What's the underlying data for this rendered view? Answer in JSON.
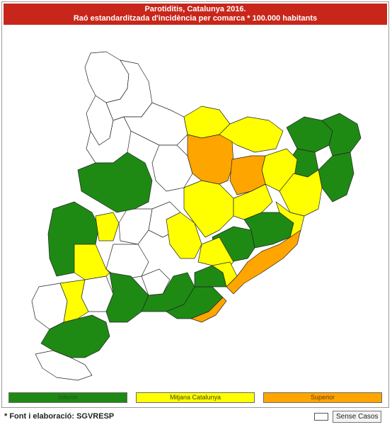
{
  "title": {
    "line1": "Parotiditis, Catalunya 2016.",
    "line2": "Raó estandarditzada d'incidència per comarca * 100.000 habitants"
  },
  "colors": {
    "title_bg": "#c8261a",
    "inferior": "#1e8a14",
    "mitjana": "#ffff00",
    "superior": "#ffa500",
    "sense_casos": "#ffffff"
  },
  "legend": {
    "inferior_label": "Inferior",
    "mitjana_label": "Mitjana Catalunya",
    "superior_label": "Superior",
    "sense_casos_label": "Sense Casos"
  },
  "footer": {
    "source": "* Font i elaboració: SGVRESP"
  }
}
